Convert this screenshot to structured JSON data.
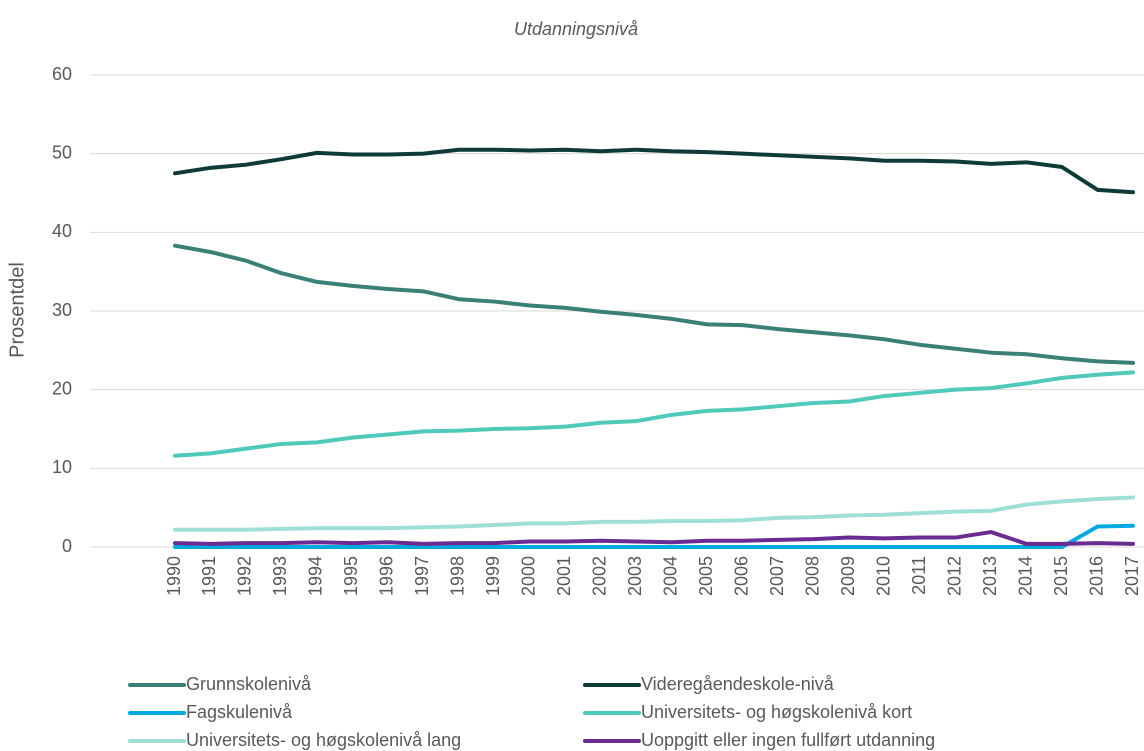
{
  "chart_data": {
    "type": "line",
    "title": "Utdanningsnivå",
    "ylabel": "Prosentdel",
    "categories": [
      "1990",
      "1991",
      "1992",
      "1993",
      "1994",
      "1995",
      "1996",
      "1997",
      "1998",
      "1999",
      "2000",
      "2001",
      "2002",
      "2003",
      "2004",
      "2005",
      "2006",
      "2007",
      "2008",
      "2009",
      "2010",
      "2011",
      "2012",
      "2013",
      "2014",
      "2015",
      "2016",
      "2017"
    ],
    "ylim": [
      0,
      60
    ],
    "yticks": [
      0,
      10,
      20,
      30,
      40,
      50,
      60
    ],
    "grid": true,
    "legend": "bottom",
    "series": [
      {
        "name": "Grunnskolenivå",
        "color": "#3b8076",
        "values": [
          38.3,
          37.5,
          36.4,
          34.8,
          33.7,
          33.2,
          32.8,
          32.5,
          31.5,
          31.2,
          30.7,
          30.4,
          29.9,
          29.5,
          29.0,
          28.3,
          28.2,
          27.7,
          27.3,
          26.9,
          26.4,
          25.7,
          25.2,
          24.7,
          24.5,
          24.0,
          23.6,
          23.4
        ]
      },
      {
        "name": "Videregåendeskole-nivå",
        "color": "#0e3b35",
        "values": [
          47.5,
          48.2,
          48.6,
          49.3,
          50.1,
          49.9,
          49.9,
          50.0,
          50.5,
          50.5,
          50.4,
          50.5,
          50.3,
          50.5,
          50.3,
          50.2,
          50.0,
          49.8,
          49.6,
          49.4,
          49.1,
          49.1,
          49.0,
          48.7,
          48.9,
          48.3,
          45.4,
          45.1
        ]
      },
      {
        "name": "Fagskulenivå",
        "color": "#00a9e0",
        "values": [
          0,
          0,
          0,
          0,
          0,
          0,
          0,
          0,
          0,
          0,
          0,
          0,
          0,
          0,
          0,
          0,
          0,
          0,
          0,
          0,
          0,
          0,
          0,
          0,
          0,
          0,
          2.6,
          2.7
        ]
      },
      {
        "name": "Universitets- og høgskolenivå kort",
        "color": "#4fc9b9",
        "values": [
          11.6,
          11.9,
          12.5,
          13.1,
          13.3,
          13.9,
          14.3,
          14.7,
          14.8,
          15.0,
          15.1,
          15.3,
          15.8,
          16.0,
          16.8,
          17.3,
          17.5,
          17.9,
          18.3,
          18.5,
          19.2,
          19.6,
          20.0,
          20.2,
          20.8,
          21.5,
          21.9,
          22.2
        ]
      },
      {
        "name": "Universitets- og høgskolenivå lang",
        "color": "#9fe0d6",
        "values": [
          2.2,
          2.2,
          2.2,
          2.3,
          2.4,
          2.4,
          2.4,
          2.5,
          2.6,
          2.8,
          3.0,
          3.0,
          3.2,
          3.2,
          3.3,
          3.3,
          3.4,
          3.7,
          3.8,
          4.0,
          4.1,
          4.3,
          4.5,
          4.6,
          5.4,
          5.8,
          6.1,
          6.3
        ]
      },
      {
        "name": "Uoppgitt eller ingen fullført utdanning",
        "color": "#6b2c91",
        "values": [
          0.5,
          0.4,
          0.5,
          0.5,
          0.6,
          0.5,
          0.6,
          0.4,
          0.5,
          0.5,
          0.7,
          0.7,
          0.8,
          0.7,
          0.6,
          0.8,
          0.8,
          0.9,
          1.0,
          1.2,
          1.1,
          1.2,
          1.2,
          1.9,
          0.4,
          0.4,
          0.5,
          0.4
        ]
      }
    ]
  }
}
